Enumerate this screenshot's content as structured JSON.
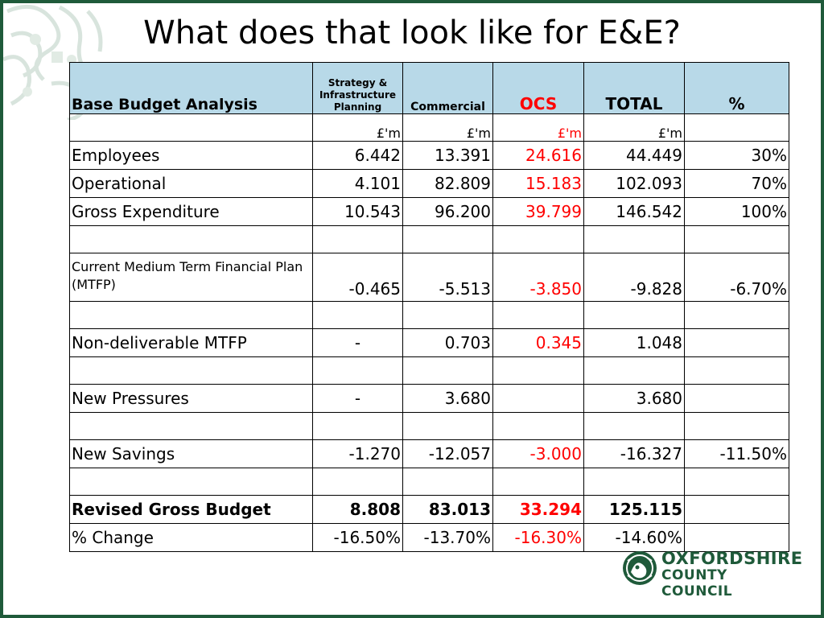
{
  "title": "What does that look like for E&E?",
  "table": {
    "headers": {
      "label": "Base Budget Analysis",
      "strategy": "Strategy & Infrastructure Planning",
      "commercial": "Commercial",
      "ocs": "OCS",
      "total": "TOTAL",
      "pct": "%"
    },
    "units": {
      "strategy": "£'m",
      "commercial": "£'m",
      "ocs": "£'m",
      "total": "£'m"
    },
    "rows": [
      {
        "label": "Employees",
        "strategy": "6.442",
        "commercial": "13.391",
        "ocs": "24.616",
        "total": "44.449",
        "pct": "30%"
      },
      {
        "label": "Operational",
        "strategy": "4.101",
        "commercial": "82.809",
        "ocs": "15.183",
        "total": "102.093",
        "pct": "70%"
      },
      {
        "label": "Gross Expenditure",
        "strategy": "10.543",
        "commercial": "96.200",
        "ocs": "39.799",
        "total": "146.542",
        "pct": "100%"
      },
      {
        "label": "Current Medium Term Financial Plan (MTFP)",
        "strategy": "-0.465",
        "commercial": "-5.513",
        "ocs": "-3.850",
        "total": "-9.828",
        "pct": "-6.70%"
      },
      {
        "label": "Non-deliverable MTFP",
        "strategy": "-",
        "commercial": "0.703",
        "ocs": "0.345",
        "total": "1.048",
        "pct": ""
      },
      {
        "label": "New Pressures",
        "strategy": "-",
        "commercial": "3.680",
        "ocs": "",
        "total": "3.680",
        "pct": ""
      },
      {
        "label": "New Savings",
        "strategy": "-1.270",
        "commercial": "-12.057",
        "ocs": "-3.000",
        "total": "-16.327",
        "pct": "-11.50%"
      },
      {
        "label": "Revised Gross Budget",
        "strategy": "8.808",
        "commercial": "83.013",
        "ocs": "33.294",
        "total": "125.115",
        "pct": ""
      },
      {
        "label": "% Change",
        "strategy": "-16.50%",
        "commercial": "-13.70%",
        "ocs": "-16.30%",
        "total": "-14.60%",
        "pct": ""
      }
    ]
  },
  "logo": {
    "line1": "OXFORDSHIRE",
    "line2": "COUNTY COUNCIL"
  },
  "colors": {
    "frame": "#1f5a3a",
    "header_fill": "#b8d9e8",
    "ocs_red": "#ff0000"
  }
}
